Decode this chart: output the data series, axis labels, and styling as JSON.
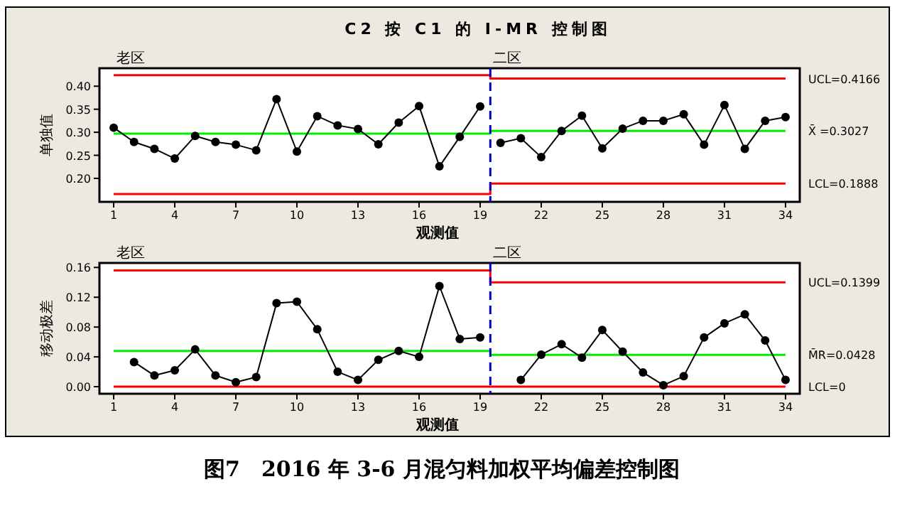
{
  "chart_data": [
    {
      "type": "line",
      "title": "C2 按 C1 的 I-MR 控制图",
      "xlabel": "观测值",
      "ylabel": "单独值",
      "xlim": [
        0.3,
        34.7
      ],
      "xticks": [
        1,
        4,
        7,
        10,
        13,
        16,
        19,
        22,
        25,
        28,
        31,
        34
      ],
      "ylim": [
        0.149,
        0.439
      ],
      "yticks": [
        {
          "value": 0.2,
          "label": "0.20"
        },
        {
          "value": 0.25,
          "label": "0.25"
        },
        {
          "value": 0.3,
          "label": "0.30"
        },
        {
          "value": 0.35,
          "label": "0.35"
        },
        {
          "value": 0.4,
          "label": "0.40"
        }
      ],
      "grid": false,
      "marker": "circle",
      "series": [
        {
          "name": "UCL=0.4166",
          "color": "#ff0000",
          "marker": "none",
          "x": [
            1,
            19.5,
            19.5,
            34
          ],
          "values": [
            0.424,
            0.424,
            0.4166,
            0.4166
          ]
        },
        {
          "name": "X̄ =0.3027",
          "color": "#00ee00",
          "marker": "none",
          "x": [
            1,
            19.5,
            19.5,
            34
          ],
          "values": [
            0.297,
            0.297,
            0.3027,
            0.3027
          ]
        },
        {
          "name": "LCL=0.1888",
          "color": "#ff0000",
          "marker": "none",
          "x": [
            1,
            19.5,
            19.5,
            34
          ],
          "values": [
            0.166,
            0.166,
            0.1888,
            0.1888
          ]
        },
        {
          "color": "#000000",
          "x": [
            1,
            2,
            3,
            4,
            5,
            6,
            7,
            8,
            9,
            10,
            11,
            12,
            13,
            14,
            15,
            16,
            17,
            18,
            19
          ],
          "values": [
            0.31,
            0.279,
            0.264,
            0.243,
            0.292,
            0.279,
            0.273,
            0.261,
            0.372,
            0.258,
            0.335,
            0.315,
            0.307,
            0.274,
            0.321,
            0.357,
            0.226,
            0.29,
            0.356
          ]
        },
        {
          "color": "#000000",
          "x": [
            20,
            21,
            22,
            23,
            24,
            25,
            26,
            27,
            28,
            29,
            30,
            31,
            32,
            33,
            34
          ],
          "values": [
            0.277,
            0.287,
            0.246,
            0.303,
            0.336,
            0.265,
            0.308,
            0.325,
            0.325,
            0.339,
            0.273,
            0.359,
            0.264,
            0.325,
            0.333
          ]
        }
      ],
      "ref_lines": [
        {
          "axis": "x",
          "value": 19.5,
          "color": "#0000cc",
          "line_style": "dashed",
          "label": "二区"
        }
      ],
      "annotations": [
        "老区",
        "图7　2016 年 3-6 月混匀料加权平均偏差控制图"
      ]
    },
    {
      "type": "line",
      "xlabel": "观测值",
      "ylabel": "移动极差",
      "xlim": [
        0.3,
        34.7
      ],
      "xticks": [
        1,
        4,
        7,
        10,
        13,
        16,
        19,
        22,
        25,
        28,
        31,
        34
      ],
      "ylim": [
        -0.0095,
        0.166
      ],
      "yticks": [
        {
          "value": 0,
          "label": "0.00"
        },
        {
          "value": 0.04,
          "label": "0.04"
        },
        {
          "value": 0.08,
          "label": "0.08"
        },
        {
          "value": 0.12,
          "label": "0.12"
        },
        {
          "value": 0.16,
          "label": "0.16"
        }
      ],
      "grid": false,
      "marker": "circle",
      "series": [
        {
          "name": "UCL=0.1399",
          "color": "#ff0000",
          "marker": "none",
          "x": [
            1,
            19.5,
            19.5,
            34
          ],
          "values": [
            0.156,
            0.156,
            0.1399,
            0.1399
          ]
        },
        {
          "name": "M̄R=0.0428",
          "color": "#00ee00",
          "marker": "none",
          "x": [
            1,
            19.5,
            19.5,
            34
          ],
          "values": [
            0.048,
            0.048,
            0.0428,
            0.0428
          ]
        },
        {
          "name": "LCL=0",
          "color": "#ff0000",
          "marker": "none",
          "x": [
            1,
            34
          ],
          "values": [
            0,
            0
          ]
        },
        {
          "color": "#000000",
          "x": [
            2,
            3,
            4,
            5,
            6,
            7,
            8,
            9,
            10,
            11,
            12,
            13,
            14,
            15,
            16,
            17,
            18,
            19
          ],
          "values": [
            0.033,
            0.015,
            0.022,
            0.05,
            0.015,
            0.006,
            0.013,
            0.112,
            0.114,
            0.077,
            0.02,
            0.009,
            0.036,
            0.048,
            0.04,
            0.135,
            0.064,
            0.066
          ]
        },
        {
          "color": "#000000",
          "x": [
            21,
            22,
            23,
            24,
            25,
            26,
            27,
            28,
            29,
            30,
            31,
            32,
            33,
            34
          ],
          "values": [
            0.009,
            0.043,
            0.057,
            0.039,
            0.076,
            0.047,
            0.019,
            0.002,
            0.014,
            0.066,
            0.085,
            0.097,
            0.062,
            0.009
          ]
        }
      ],
      "ref_lines": [
        {
          "axis": "x",
          "value": 19.5,
          "color": "#0000cc",
          "line_style": "dashed",
          "label": "二区"
        }
      ],
      "annotations": [
        "老区"
      ]
    }
  ]
}
